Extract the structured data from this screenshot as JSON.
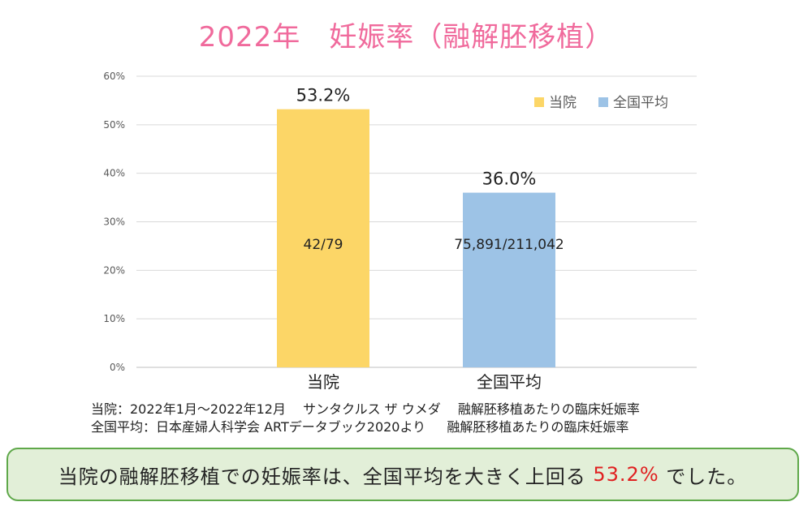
{
  "colors": {
    "title": "#f06a9c",
    "hospital_bar": "#fcd667",
    "national_bar": "#9dc3e6",
    "highlight": "#e02020",
    "summary_border": "#5fa84a",
    "summary_bg": "#e2efd8"
  },
  "chart_data": {
    "type": "bar",
    "title": "2022年　妊娠率（融解胚移植）",
    "categories": [
      "当院",
      "全国平均"
    ],
    "values": [
      53.2,
      36.0
    ],
    "value_labels": [
      "53.2%",
      "36.0%"
    ],
    "inner_labels": [
      "42/79",
      "75,891/211,042"
    ],
    "ylim": [
      0,
      60
    ],
    "yticks": [
      0,
      10,
      20,
      30,
      40,
      50,
      60
    ],
    "ytick_labels": [
      "0%",
      "10%",
      "20%",
      "30%",
      "40%",
      "50%",
      "60%"
    ],
    "legend": {
      "position": "top-right",
      "entries": [
        {
          "label": "当院",
          "color": "#fcd667"
        },
        {
          "label": "全国平均",
          "color": "#9dc3e6"
        }
      ]
    },
    "grid": true
  },
  "notes": [
    "当院：2022年1月〜2022年12月　 サンタクルス ザ ウメダ　 融解胚移植あたりの臨床妊娠率",
    "全国平均：日本産婦人科学会 ARTデータブック2020より　  融解胚移植あたりの臨床妊娠率"
  ],
  "summary": {
    "before": "当院の融解胚移植での妊娠率は、全国平均を大きく上回る ",
    "highlight": "53.2%",
    "after": " でした。"
  }
}
